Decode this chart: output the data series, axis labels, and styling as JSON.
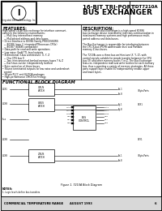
{
  "title_left": "16-BIT TRI-PORT",
  "title_left2": "BUS EXCHANGER",
  "part_number": "IDT7210A",
  "company": "Integrated Device Technology, Inc.",
  "features_title": "FEATURES:",
  "description_title": "DESCRIPTION:",
  "block_diagram_title": "FUNCTIONAL BLOCK DIAGRAM",
  "footer_commercial": "COMMERCIAL TEMPERATURE RANGE",
  "footer_date": "AUGUST 1993",
  "footer_page": "6",
  "bg_color": "#ffffff",
  "border_color": "#000000",
  "text_color": "#000000"
}
